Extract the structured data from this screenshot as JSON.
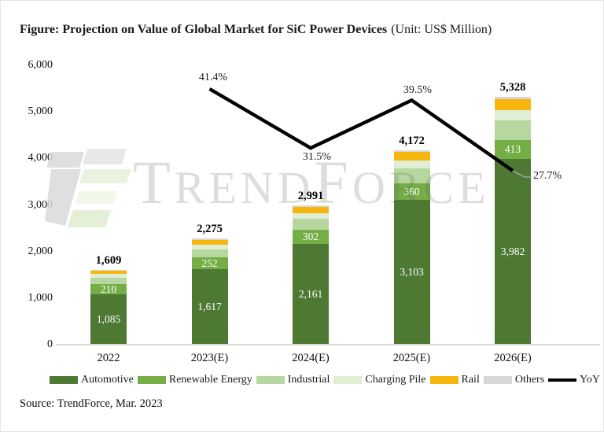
{
  "title": {
    "main": "Figure: Projection on Value of Global Market for SiC Power Devices",
    "unit": "(Unit: US$ Million)"
  },
  "source": "Source: TrendForce, Mar. 2023",
  "watermark": {
    "text": "TrendForce",
    "text_parts": [
      "T",
      "REND",
      "F",
      "ORCE"
    ],
    "logo": "trendforce-logo"
  },
  "colors": {
    "axis_line": "#d9d9d9",
    "bar_value_label": "#ffffff",
    "total_label": "#000000",
    "yoy_line": "#000000",
    "leader_line": "#b0b0b0"
  },
  "chart_data": {
    "type": "bar",
    "subtype": "stacked-bars-with-line",
    "title": "Projection on Value of Global Market for SiC Power Devices",
    "unit": "US$ Million",
    "categories": [
      "2022",
      "2023(E)",
      "2024(E)",
      "2025(E)",
      "2026(E)"
    ],
    "series": [
      {
        "name": "Automotive",
        "color": "#4e7933",
        "values": [
          1085,
          1617,
          2161,
          3103,
          3982
        ],
        "value_labels_visible": true
      },
      {
        "name": "Renewable Energy",
        "color": "#74ae45",
        "values": [
          210,
          252,
          302,
          360,
          413
        ],
        "value_labels_visible": true
      },
      {
        "name": "Industrial",
        "color": "#b6d89e",
        "values": [
          140,
          180,
          235,
          320,
          425
        ],
        "value_labels_visible": false,
        "estimated": true
      },
      {
        "name": "Charging Pile",
        "color": "#e0eed6",
        "values": [
          80,
          100,
          130,
          170,
          220
        ],
        "value_labels_visible": false,
        "estimated": true
      },
      {
        "name": "Rail",
        "color": "#f7b60e",
        "values": [
          80,
          105,
          135,
          180,
          240
        ],
        "value_labels_visible": false,
        "estimated": true
      },
      {
        "name": "Others",
        "color": "#d8d8d8",
        "values": [
          14,
          21,
          28,
          39,
          48
        ],
        "value_labels_visible": false,
        "estimated": true
      }
    ],
    "totals": [
      1609,
      2275,
      2991,
      4172,
      5328
    ],
    "line_series": {
      "name": "YoY",
      "color": "#000000",
      "unit": "%",
      "values": [
        null,
        41.4,
        31.5,
        39.5,
        27.7
      ]
    },
    "y_axis": {
      "min": 0,
      "max": 6000,
      "tick_step": 1000,
      "tick_labels": [
        "6,000",
        "5,000",
        "4,000",
        "3,000",
        "2,000",
        "1,000",
        "0"
      ],
      "grid": false
    },
    "legend": {
      "position": "bottom",
      "entries": [
        "Automotive",
        "Renewable Energy",
        "Industrial",
        "Charging Pile",
        "Rail",
        "Others",
        "YoY"
      ]
    }
  }
}
